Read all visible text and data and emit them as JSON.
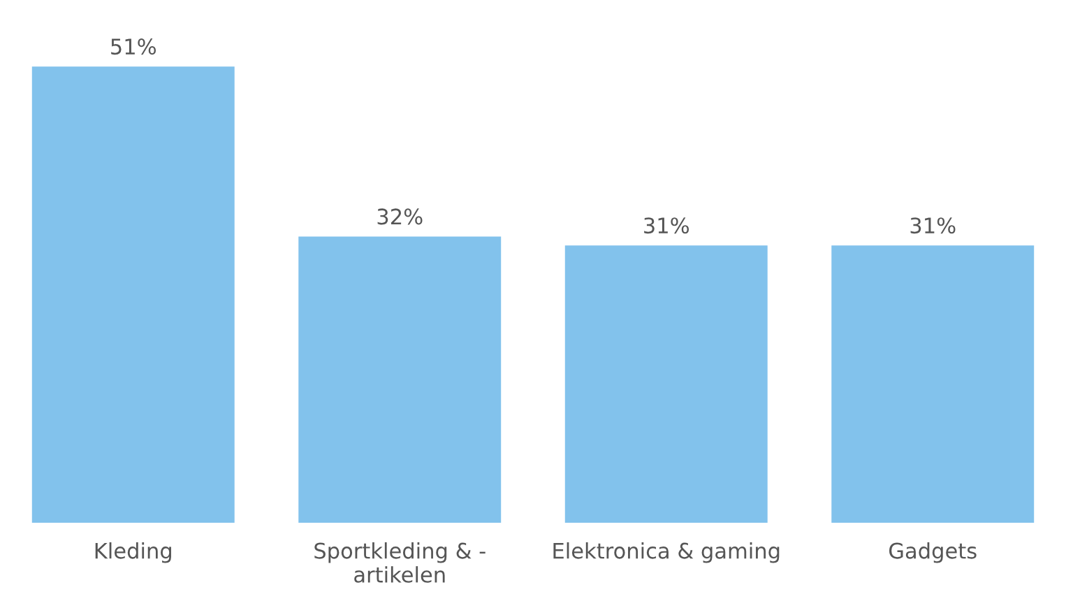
{
  "chart_data": {
    "type": "bar",
    "categories": [
      "Kleding",
      "Sportkleding & -\nartikelen",
      "Elektronica & gaming",
      "Gadgets"
    ],
    "values": [
      51,
      32,
      31,
      31
    ],
    "value_labels": [
      "51%",
      "32%",
      "31%",
      "31%"
    ],
    "color": "#82c2ec",
    "grid": false,
    "legend": false
  }
}
